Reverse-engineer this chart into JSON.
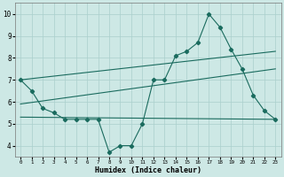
{
  "xlabel": "Humidex (Indice chaleur)",
  "x_range": [
    -0.5,
    23.5
  ],
  "y_range": [
    3.5,
    10.5
  ],
  "yticks": [
    4,
    5,
    6,
    7,
    8,
    9,
    10
  ],
  "xticks": [
    0,
    1,
    2,
    3,
    4,
    5,
    6,
    7,
    8,
    9,
    10,
    11,
    12,
    13,
    14,
    15,
    16,
    17,
    18,
    19,
    20,
    21,
    22,
    23
  ],
  "background_color": "#cde8e5",
  "line_color": "#1a6b5e",
  "grid_color": "#aacfcc",
  "line1_x": [
    0,
    1,
    2,
    3,
    4,
    5,
    6,
    7,
    8,
    9,
    10,
    11,
    12,
    13,
    14,
    15,
    16,
    17,
    18,
    19,
    20,
    21,
    22,
    23
  ],
  "line1_y": [
    7.0,
    6.5,
    5.7,
    5.5,
    5.2,
    5.2,
    5.2,
    5.2,
    3.7,
    4.0,
    4.0,
    5.0,
    7.0,
    7.0,
    8.1,
    8.3,
    8.7,
    10.0,
    9.4,
    8.4,
    7.5,
    6.3,
    5.6,
    5.2
  ],
  "line2_x": [
    0,
    23
  ],
  "line2_y": [
    7.0,
    8.3
  ],
  "line3_x": [
    0,
    23
  ],
  "line3_y": [
    5.9,
    7.5
  ],
  "line4_x": [
    0,
    23
  ],
  "line4_y": [
    5.3,
    5.2
  ]
}
